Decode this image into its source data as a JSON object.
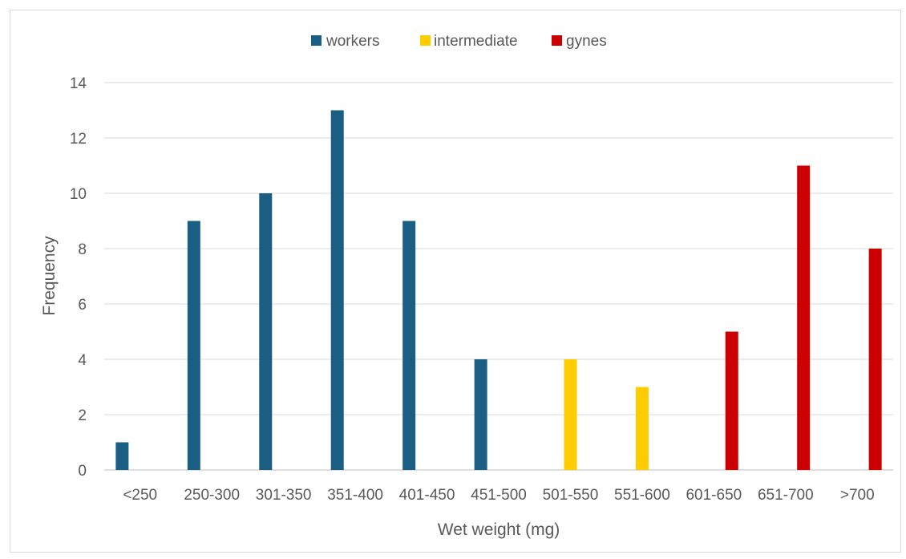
{
  "chart_data": {
    "type": "bar",
    "title": "",
    "xlabel": "Wet weight (mg)",
    "ylabel": "Frequency",
    "ylim": [
      0,
      14
    ],
    "yticks": [
      0,
      2,
      4,
      6,
      8,
      10,
      12,
      14
    ],
    "grid": true,
    "legend_position": "top",
    "categories": [
      "<250",
      "250-300",
      "301-350",
      "351-400",
      "401-450",
      "451-500",
      "501-550",
      "551-600",
      "601-650",
      "651-700",
      ">700"
    ],
    "series": [
      {
        "name": "workers",
        "color": "#1a5e83",
        "values": [
          1,
          9,
          10,
          13,
          9,
          4,
          0,
          0,
          0,
          0,
          0
        ]
      },
      {
        "name": "intermediate",
        "color": "#ffcc00",
        "values": [
          0,
          0,
          0,
          0,
          0,
          0,
          4,
          3,
          0,
          0,
          0
        ]
      },
      {
        "name": "gynes",
        "color": "#cc0000",
        "values": [
          0,
          0,
          0,
          0,
          0,
          0,
          0,
          0,
          5,
          11,
          8
        ]
      }
    ]
  }
}
